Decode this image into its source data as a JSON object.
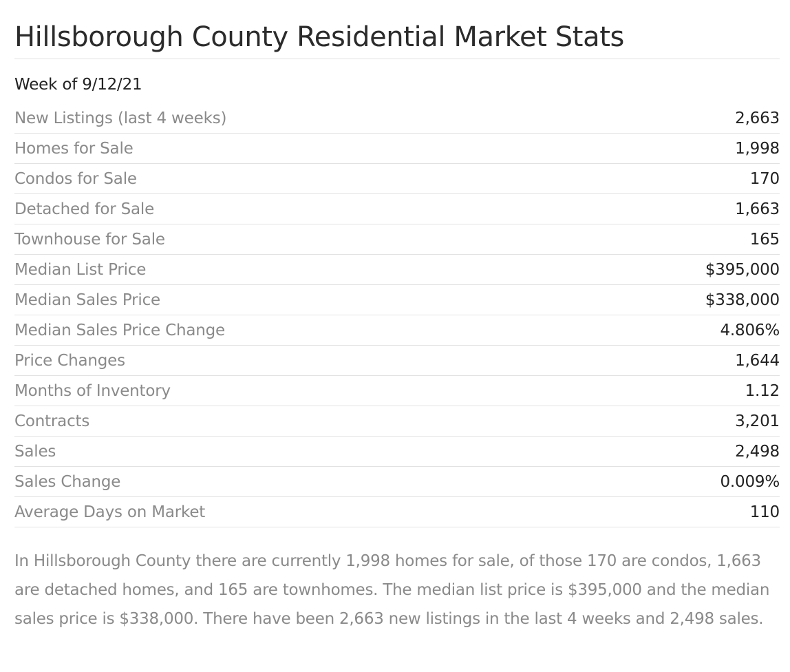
{
  "header": {
    "title": "Hillsborough County Residential Market Stats",
    "week_label": "Week of 9/12/21"
  },
  "stats": [
    {
      "label": "New Listings (last 4 weeks)",
      "value": "2,663"
    },
    {
      "label": "Homes for Sale",
      "value": "1,998"
    },
    {
      "label": "Condos for Sale",
      "value": "170"
    },
    {
      "label": "Detached for Sale",
      "value": "1,663"
    },
    {
      "label": "Townhouse for Sale",
      "value": "165"
    },
    {
      "label": "Median List Price",
      "value": "$395,000"
    },
    {
      "label": "Median Sales Price",
      "value": "$338,000"
    },
    {
      "label": "Median Sales Price Change",
      "value": "4.806%"
    },
    {
      "label": "Price Changes",
      "value": "1,644"
    },
    {
      "label": "Months of Inventory",
      "value": "1.12"
    },
    {
      "label": "Contracts",
      "value": "3,201"
    },
    {
      "label": "Sales",
      "value": "2,498"
    },
    {
      "label": "Sales Change",
      "value": "0.009%"
    },
    {
      "label": "Average Days on Market",
      "value": "110"
    }
  ],
  "summary": {
    "text": "In Hillsborough County there are currently 1,998 homes for sale, of those 170 are condos, 1,663 are detached homes, and 165 are townhomes. The median list price is $395,000 and the median sales price is $338,000. There have been 2,663 new listings in the last 4 weeks and 2,498 sales."
  }
}
